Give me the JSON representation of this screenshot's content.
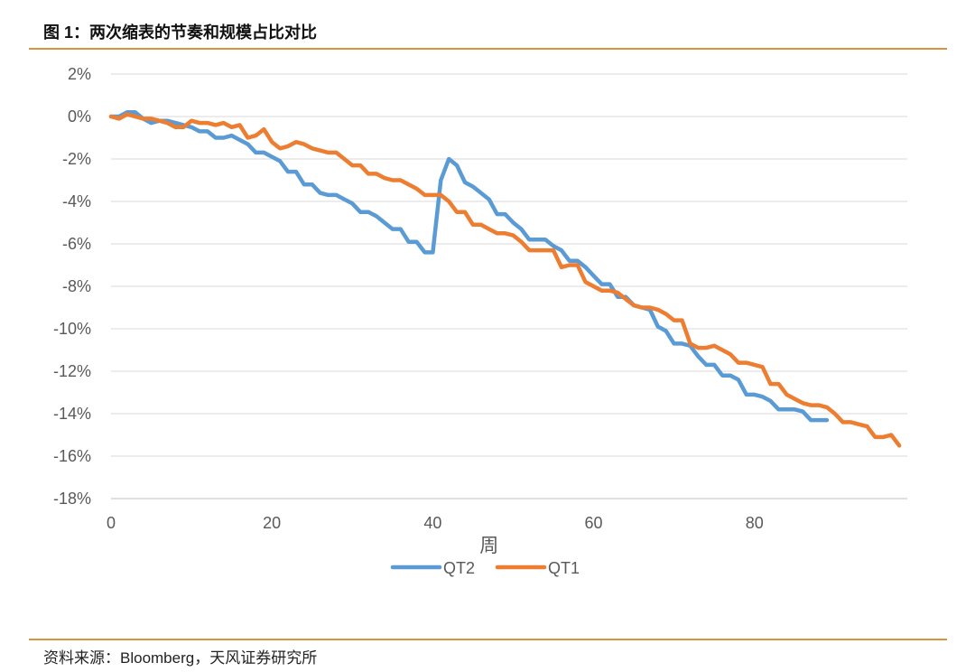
{
  "header": {
    "title": "图 1：两次缩表的节奏和规模占比对比"
  },
  "footer": {
    "source": "资料来源：Bloomberg，天风证券研究所"
  },
  "chart_data": {
    "type": "line",
    "xlabel": "周",
    "ylabel": "",
    "xlim": [
      0,
      99
    ],
    "ylim": [
      -18,
      2
    ],
    "xticks": [
      0,
      20,
      40,
      60,
      80
    ],
    "yticks": [
      2,
      0,
      -2,
      -4,
      -6,
      -8,
      -10,
      -12,
      -14,
      -16,
      -18
    ],
    "ytick_labels": [
      "2%",
      "0%",
      "-2%",
      "-4%",
      "-6%",
      "-8%",
      "-10%",
      "-12%",
      "-14%",
      "-16%",
      "-18%"
    ],
    "grid": "horizontal",
    "legend": "bottom",
    "series": [
      {
        "name": "QT2",
        "color": "#5b9bd5",
        "x": [
          0,
          1,
          2,
          3,
          4,
          5,
          6,
          7,
          8,
          9,
          10,
          11,
          12,
          13,
          14,
          15,
          16,
          17,
          18,
          19,
          20,
          21,
          22,
          23,
          24,
          25,
          26,
          27,
          28,
          29,
          30,
          31,
          32,
          33,
          34,
          35,
          36,
          37,
          38,
          39,
          40,
          41,
          42,
          43,
          44,
          45,
          46,
          47,
          48,
          49,
          50,
          51,
          52,
          53,
          54,
          55,
          56,
          57,
          58,
          59,
          60,
          61,
          62,
          63,
          64,
          65,
          66,
          67,
          68,
          69,
          70,
          71,
          72,
          73,
          74,
          75,
          76,
          77,
          78,
          79,
          80,
          81,
          82,
          83,
          84,
          85,
          86,
          87,
          88,
          89
        ],
        "values": [
          0,
          0,
          0.2,
          0.2,
          -0.1,
          -0.3,
          -0.2,
          -0.2,
          -0.3,
          -0.4,
          -0.5,
          -0.7,
          -0.7,
          -1.0,
          -1.0,
          -0.9,
          -1.1,
          -1.3,
          -1.7,
          -1.7,
          -1.9,
          -2.1,
          -2.6,
          -2.6,
          -3.2,
          -3.2,
          -3.6,
          -3.7,
          -3.7,
          -3.9,
          -4.1,
          -4.5,
          -4.5,
          -4.7,
          -5.0,
          -5.3,
          -5.3,
          -5.9,
          -5.9,
          -6.4,
          -6.4,
          -3.0,
          -2.0,
          -2.3,
          -3.1,
          -3.3,
          -3.6,
          -3.9,
          -4.6,
          -4.6,
          -5.0,
          -5.3,
          -5.8,
          -5.8,
          -5.8,
          -6.1,
          -6.3,
          -6.8,
          -6.8,
          -7.1,
          -7.5,
          -7.9,
          -7.9,
          -8.5,
          -8.5,
          -8.9,
          -9.0,
          -9.1,
          -9.9,
          -10.1,
          -10.7,
          -10.7,
          -10.8,
          -11.3,
          -11.7,
          -11.7,
          -12.2,
          -12.2,
          -12.4,
          -13.1,
          -13.1,
          -13.2,
          -13.4,
          -13.8,
          -13.8,
          -13.8,
          -13.9,
          -14.3,
          -14.3,
          -14.3
        ]
      },
      {
        "name": "QT1",
        "color": "#ed7d31",
        "x": [
          0,
          1,
          2,
          3,
          4,
          5,
          6,
          7,
          8,
          9,
          10,
          11,
          12,
          13,
          14,
          15,
          16,
          17,
          18,
          19,
          20,
          21,
          22,
          23,
          24,
          25,
          26,
          27,
          28,
          29,
          30,
          31,
          32,
          33,
          34,
          35,
          36,
          37,
          38,
          39,
          40,
          41,
          42,
          43,
          44,
          45,
          46,
          47,
          48,
          49,
          50,
          51,
          52,
          53,
          54,
          55,
          56,
          57,
          58,
          59,
          60,
          61,
          62,
          63,
          64,
          65,
          66,
          67,
          68,
          69,
          70,
          71,
          72,
          73,
          74,
          75,
          76,
          77,
          78,
          79,
          80,
          81,
          82,
          83,
          84,
          85,
          86,
          87,
          88,
          89,
          90,
          91,
          92,
          93,
          94,
          95,
          96,
          97,
          98
        ],
        "values": [
          0,
          -0.1,
          0.1,
          0,
          -0.1,
          -0.1,
          -0.2,
          -0.3,
          -0.5,
          -0.5,
          -0.2,
          -0.3,
          -0.3,
          -0.4,
          -0.3,
          -0.5,
          -0.4,
          -1.0,
          -0.9,
          -0.6,
          -1.2,
          -1.5,
          -1.4,
          -1.2,
          -1.3,
          -1.5,
          -1.6,
          -1.7,
          -1.7,
          -2.0,
          -2.3,
          -2.3,
          -2.7,
          -2.7,
          -2.9,
          -3.0,
          -3.0,
          -3.2,
          -3.4,
          -3.7,
          -3.7,
          -3.7,
          -4.0,
          -4.5,
          -4.5,
          -5.1,
          -5.1,
          -5.3,
          -5.5,
          -5.5,
          -5.6,
          -5.9,
          -6.3,
          -6.3,
          -6.3,
          -6.3,
          -7.1,
          -7.0,
          -7.0,
          -7.8,
          -8.0,
          -8.2,
          -8.2,
          -8.3,
          -8.6,
          -8.9,
          -9.0,
          -9.0,
          -9.1,
          -9.3,
          -9.6,
          -9.6,
          -10.7,
          -10.9,
          -10.9,
          -10.8,
          -11.0,
          -11.2,
          -11.6,
          -11.6,
          -11.7,
          -11.8,
          -12.6,
          -12.6,
          -13.1,
          -13.3,
          -13.5,
          -13.6,
          -13.6,
          -13.7,
          -14.0,
          -14.4,
          -14.4,
          -14.5,
          -14.6,
          -15.1,
          -15.1,
          -15.0,
          -15.5
        ]
      }
    ]
  }
}
